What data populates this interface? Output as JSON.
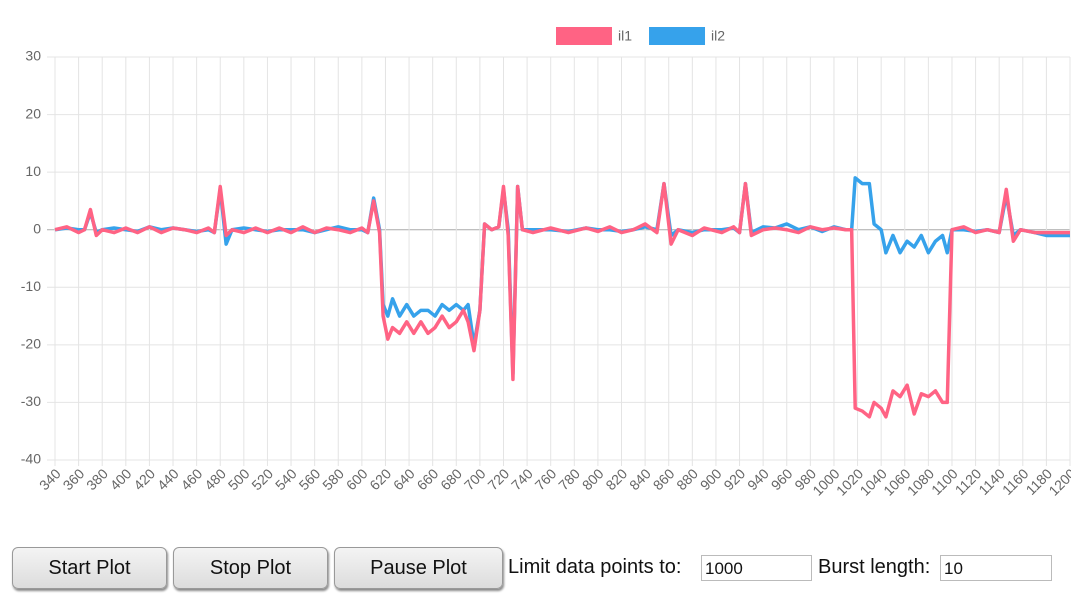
{
  "chart_data": {
    "type": "line",
    "x": [
      340,
      350,
      360,
      365,
      370,
      375,
      380,
      390,
      400,
      410,
      420,
      430,
      440,
      450,
      460,
      470,
      475,
      480,
      485,
      490,
      500,
      510,
      520,
      530,
      540,
      550,
      560,
      570,
      580,
      590,
      600,
      605,
      610,
      615,
      618,
      622,
      626,
      632,
      638,
      644,
      650,
      656,
      662,
      668,
      674,
      680,
      686,
      690,
      695,
      700,
      704,
      710,
      716,
      720,
      724,
      728,
      732,
      736,
      745,
      760,
      775,
      790,
      800,
      810,
      820,
      830,
      840,
      850,
      856,
      862,
      868,
      880,
      890,
      905,
      915,
      920,
      925,
      930,
      940,
      950,
      960,
      970,
      980,
      990,
      1000,
      1010,
      1015,
      1018,
      1024,
      1030,
      1034,
      1040,
      1044,
      1050,
      1056,
      1062,
      1068,
      1074,
      1080,
      1086,
      1092,
      1096,
      1100,
      1110,
      1120,
      1130,
      1140,
      1146,
      1152,
      1158,
      1170,
      1180,
      1190,
      1200
    ],
    "series": [
      {
        "name": "il1",
        "color": "#ff6384",
        "values": [
          0,
          0.5,
          -0.5,
          0,
          3.5,
          -1,
          0,
          -0.5,
          0.3,
          -0.5,
          0.5,
          -0.5,
          0.3,
          0,
          -0.5,
          0.3,
          -0.5,
          7.5,
          -1,
          0,
          -0.5,
          0.3,
          -0.5,
          0.3,
          -0.5,
          0.5,
          -0.5,
          0.3,
          0,
          -0.5,
          0.3,
          -0.5,
          5,
          -0.5,
          -15,
          -19,
          -17,
          -18,
          -16,
          -18,
          -16,
          -18,
          -17,
          -15,
          -17,
          -16,
          -14,
          -16,
          -21,
          -14,
          1,
          0,
          0.5,
          7.5,
          -1,
          -26,
          7.5,
          0,
          -0.5,
          0.3,
          -0.5,
          0.3,
          -0.3,
          0.5,
          -0.5,
          0,
          1,
          -0.5,
          8,
          -2.5,
          0,
          -1,
          0.3,
          -0.5,
          0.5,
          -0.5,
          8,
          -1,
          0,
          0.3,
          0,
          -0.5,
          0.5,
          0,
          0.3,
          0,
          0,
          -31,
          -31.5,
          -32.5,
          -30,
          -31,
          -32.5,
          -28,
          -29,
          -27,
          -32,
          -28.5,
          -29,
          -28,
          -30,
          -30,
          0,
          0.5,
          -0.5,
          0,
          -0.5,
          7,
          -2,
          0,
          -0.5,
          -0.5,
          -0.5,
          -0.5
        ]
      },
      {
        "name": "il2",
        "color": "#36a2eb",
        "values": [
          0,
          0.3,
          0,
          0,
          3,
          -0.5,
          0,
          0.3,
          0,
          -0.3,
          0.5,
          0,
          0.3,
          0,
          -0.3,
          0,
          -0.5,
          7,
          -2.5,
          0,
          0.3,
          0,
          -0.3,
          0,
          0,
          0,
          -0.5,
          0,
          0.5,
          0,
          0,
          -0.5,
          5.5,
          0,
          -13,
          -15,
          -12,
          -15,
          -13,
          -15,
          -14,
          -14,
          -15,
          -13,
          -14,
          -13,
          -14,
          -13,
          -20,
          -14,
          1,
          0,
          0.5,
          7,
          0,
          -25,
          7.5,
          0,
          0,
          0,
          -0.3,
          0.3,
          0,
          0,
          -0.3,
          0,
          0.5,
          0,
          8,
          -1,
          0,
          -0.5,
          0,
          0,
          0.3,
          -0.5,
          8,
          -0.5,
          0.5,
          0.3,
          1,
          0,
          0.5,
          -0.3,
          0.5,
          0,
          0,
          9,
          8,
          8,
          1,
          0,
          -4,
          -1,
          -4,
          -2,
          -3,
          -1,
          -4,
          -2,
          -1,
          -4,
          0,
          0,
          -0.3,
          0,
          -0.5,
          6,
          -1,
          0,
          -0.5,
          -1,
          -1,
          -1
        ]
      }
    ],
    "xlim": [
      340,
      1200
    ],
    "xticks": [
      340,
      360,
      380,
      400,
      420,
      440,
      460,
      480,
      500,
      520,
      540,
      560,
      580,
      600,
      620,
      640,
      660,
      680,
      700,
      720,
      740,
      760,
      780,
      800,
      820,
      840,
      860,
      880,
      900,
      920,
      940,
      960,
      980,
      1000,
      1020,
      1040,
      1060,
      1080,
      1100,
      1120,
      1140,
      1160,
      1180,
      1200
    ],
    "ylim": [
      -40,
      30
    ],
    "yticks": [
      -40,
      -30,
      -20,
      -10,
      0,
      10,
      20,
      30
    ],
    "grid": true,
    "legend": "top"
  },
  "controls": {
    "buttons": [
      "Start Plot",
      "Stop Plot",
      "Pause Plot"
    ],
    "limit_label": "Limit data points to:",
    "limit_value": "1000",
    "burst_label": "Burst length:",
    "burst_value": "10"
  }
}
